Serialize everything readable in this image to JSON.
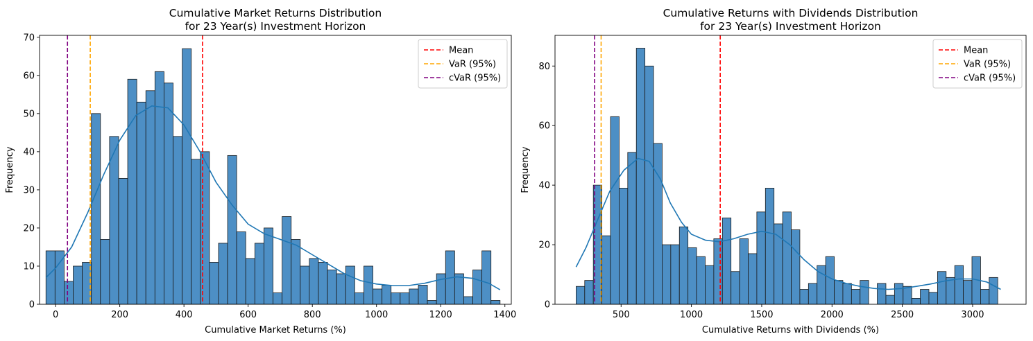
{
  "chart_data": [
    {
      "type": "histogram",
      "title": [
        "Cumulative Market Returns Distribution",
        "for 23 Year(s) Investment Horizon"
      ],
      "xlabel": "Cumulative Market Returns (%)",
      "ylabel": "Frequency",
      "xlim": [
        -50,
        1420
      ],
      "ylim": [
        0,
        70.5
      ],
      "xticks": [
        0,
        200,
        400,
        600,
        800,
        1000,
        1200,
        1400
      ],
      "yticks": [
        0,
        10,
        20,
        30,
        40,
        50,
        60,
        70
      ],
      "bin_start": -30,
      "bin_width": 28.3,
      "counts": [
        14,
        14,
        6,
        10,
        11,
        50,
        17,
        44,
        33,
        59,
        53,
        56,
        61,
        58,
        44,
        67,
        38,
        40,
        11,
        16,
        39,
        19,
        12,
        16,
        20,
        3,
        23,
        17,
        10,
        12,
        11,
        9,
        8,
        10,
        3,
        10,
        4,
        5,
        3,
        3,
        4,
        5,
        1,
        8,
        14,
        8,
        2,
        9,
        14,
        1
      ],
      "kde": [
        [
          -30,
          7
        ],
        [
          0,
          9.5
        ],
        [
          50,
          15
        ],
        [
          100,
          24
        ],
        [
          150,
          34
        ],
        [
          200,
          43
        ],
        [
          250,
          49.5
        ],
        [
          300,
          52
        ],
        [
          350,
          51.5
        ],
        [
          400,
          47
        ],
        [
          450,
          40
        ],
        [
          500,
          32
        ],
        [
          550,
          26
        ],
        [
          600,
          21
        ],
        [
          650,
          18.5
        ],
        [
          700,
          17
        ],
        [
          750,
          15.5
        ],
        [
          800,
          13
        ],
        [
          850,
          10.5
        ],
        [
          900,
          8
        ],
        [
          950,
          6.2
        ],
        [
          1000,
          5.3
        ],
        [
          1050,
          4.9
        ],
        [
          1100,
          4.9
        ],
        [
          1150,
          5.5
        ],
        [
          1200,
          6.5
        ],
        [
          1250,
          7.2
        ],
        [
          1300,
          6.8
        ],
        [
          1350,
          5.5
        ],
        [
          1385,
          3.8
        ]
      ],
      "vlines": [
        {
          "label": "Mean",
          "x": 458,
          "color": "#ff0000"
        },
        {
          "label": "VaR (95%)",
          "x": 108,
          "color": "#ffa500"
        },
        {
          "label": "cVaR (95%)",
          "x": 37,
          "color": "#800080"
        }
      ],
      "bar_color": "#4d8fc5",
      "kde_color": "#1f77b4",
      "legend_position": "top-right"
    },
    {
      "type": "histogram",
      "title": [
        "Cumulative Returns with Dividends Distribution",
        "for 23 Year(s) Investment Horizon"
      ],
      "xlabel": "Cumulative Returns with Dividends (%)",
      "ylabel": "Frequency",
      "xlim": [
        30,
        3380
      ],
      "ylim": [
        0,
        90.3
      ],
      "xticks": [
        500,
        1000,
        1500,
        2000,
        2500,
        3000
      ],
      "yticks": [
        0,
        20,
        40,
        60,
        80
      ],
      "bin_start": 180,
      "bin_width": 61.2,
      "counts": [
        6,
        8,
        40,
        23,
        63,
        39,
        51,
        86,
        80,
        54,
        20,
        20,
        26,
        19,
        16,
        13,
        22,
        29,
        11,
        22,
        17,
        31,
        39,
        27,
        31,
        25,
        5,
        7,
        13,
        16,
        8,
        7,
        5,
        8,
        0,
        7,
        3,
        7,
        6,
        2,
        5,
        4,
        11,
        9,
        13,
        8,
        16,
        5,
        9
      ],
      "kde": [
        [
          180,
          12.5
        ],
        [
          250,
          19
        ],
        [
          330,
          28
        ],
        [
          420,
          38
        ],
        [
          520,
          45
        ],
        [
          620,
          49
        ],
        [
          700,
          48
        ],
        [
          780,
          42
        ],
        [
          850,
          34
        ],
        [
          930,
          27.5
        ],
        [
          1000,
          23.5
        ],
        [
          1100,
          21.5
        ],
        [
          1200,
          21
        ],
        [
          1300,
          22
        ],
        [
          1400,
          23.5
        ],
        [
          1500,
          24.5
        ],
        [
          1600,
          23.5
        ],
        [
          1700,
          20
        ],
        [
          1800,
          15
        ],
        [
          1900,
          11
        ],
        [
          2000,
          8.5
        ],
        [
          2100,
          7
        ],
        [
          2200,
          6
        ],
        [
          2300,
          5.3
        ],
        [
          2400,
          5
        ],
        [
          2500,
          5.3
        ],
        [
          2600,
          6
        ],
        [
          2700,
          6.8
        ],
        [
          2800,
          7.8
        ],
        [
          2900,
          8.5
        ],
        [
          3000,
          8.5
        ],
        [
          3100,
          7.5
        ],
        [
          3200,
          5
        ]
      ],
      "vlines": [
        {
          "label": "Mean",
          "x": 1205,
          "color": "#ff0000"
        },
        {
          "label": "VaR (95%)",
          "x": 358,
          "color": "#ffa500"
        },
        {
          "label": "cVaR (95%)",
          "x": 312,
          "color": "#800080"
        }
      ],
      "bar_color": "#4d8fc5",
      "kde_color": "#1f77b4",
      "legend_position": "top-right"
    }
  ]
}
